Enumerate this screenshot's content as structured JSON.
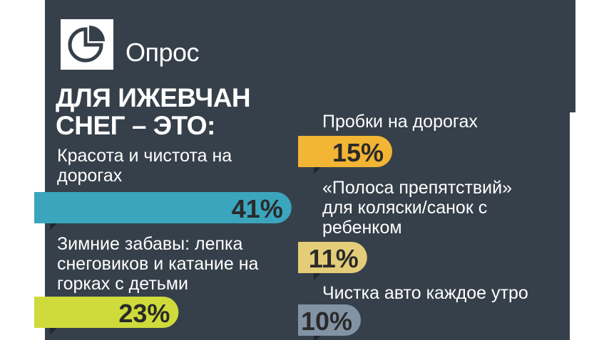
{
  "header": {
    "section_label": "Опрос",
    "title": "ДЛЯ ИЖЕВЧАН СНЕГ – ЭТО:"
  },
  "icons": {
    "logo": "pie-chart-icon"
  },
  "colors": {
    "background": "#36404a",
    "bar_1": "#3ba5bd",
    "bar_2": "#cfdb3a",
    "bar_3": "#f2b534",
    "bar_4": "#e3cd79",
    "bar_5": "#8293a5"
  },
  "chart_data": {
    "type": "bar",
    "title": "ДЛЯ ИЖЕВЧАН СНЕГ – ЭТО:",
    "unit": "%",
    "categories": [
      "Красота и чистота на дорогах",
      "Зимние забавы: лепка снеговиков и катание на горках с детьми",
      "Пробки на дорогах",
      "«Полоса препятствий» для коляски/санок с ребенком",
      "Чистка авто каждое утро"
    ],
    "values": [
      41,
      23,
      15,
      11,
      10
    ],
    "labels": [
      "41%",
      "23%",
      "15%",
      "11%",
      "10%"
    ]
  }
}
